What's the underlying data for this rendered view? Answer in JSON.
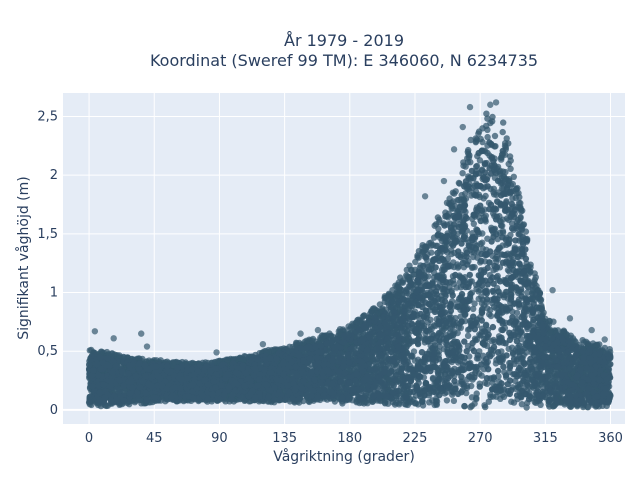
{
  "chart_data": {
    "type": "scatter",
    "title_lines": [
      "År 1979 - 2019",
      "Koordinat (Sweref 99 TM): E 346060, N 6234735"
    ],
    "xlabel": "Vågriktning (grader)",
    "ylabel": "Signifikant våghöjd (m)",
    "xlim": [
      -18,
      370
    ],
    "ylim": [
      -0.12,
      2.7
    ],
    "x_ticks": [
      0,
      45,
      90,
      135,
      180,
      225,
      270,
      315,
      360
    ],
    "x_tick_labels": [
      "0",
      "45",
      "90",
      "135",
      "180",
      "225",
      "270",
      "315",
      "360"
    ],
    "y_ticks": [
      0,
      0.5,
      1,
      1.5,
      2,
      2.5
    ],
    "y_tick_labels": [
      "0",
      "0,5",
      "1",
      "1,5",
      "2",
      "2,5"
    ],
    "grid": true,
    "marker_color": "#34586e",
    "plot_background": "#e5ecf6",
    "series": [
      {
        "envelope": {
          "x": [
            0,
            10,
            20,
            30,
            45,
            60,
            75,
            90,
            105,
            120,
            135,
            150,
            165,
            180,
            195,
            210,
            225,
            240,
            250,
            260,
            265,
            270,
            275,
            280,
            285,
            290,
            295,
            300,
            305,
            315,
            325,
            335,
            345,
            355,
            360
          ],
          "y_min": [
            0.03,
            0.03,
            0.04,
            0.05,
            0.06,
            0.07,
            0.07,
            0.07,
            0.07,
            0.07,
            0.06,
            0.06,
            0.06,
            0.05,
            0.05,
            0.04,
            0.04,
            0.03,
            0.03,
            0.02,
            0.02,
            0.02,
            0.02,
            0.02,
            0.02,
            0.02,
            0.02,
            0.02,
            0.02,
            0.02,
            0.02,
            0.02,
            0.02,
            0.03,
            0.03
          ],
          "y_max": [
            0.52,
            0.5,
            0.47,
            0.45,
            0.43,
            0.41,
            0.4,
            0.42,
            0.45,
            0.5,
            0.54,
            0.6,
            0.65,
            0.72,
            0.85,
            1.05,
            1.3,
            1.62,
            1.85,
            2.18,
            2.35,
            2.45,
            2.55,
            2.56,
            2.5,
            2.25,
            1.95,
            1.65,
            1.3,
            0.82,
            0.7,
            0.62,
            0.58,
            0.55,
            0.52
          ]
        },
        "outliers": [
          {
            "x": 4,
            "y": 0.67
          },
          {
            "x": 17,
            "y": 0.61
          },
          {
            "x": 36,
            "y": 0.65
          },
          {
            "x": 40,
            "y": 0.54
          },
          {
            "x": 88,
            "y": 0.49
          },
          {
            "x": 120,
            "y": 0.56
          },
          {
            "x": 146,
            "y": 0.65
          },
          {
            "x": 158,
            "y": 0.68
          },
          {
            "x": 232,
            "y": 1.82
          },
          {
            "x": 245,
            "y": 1.95
          },
          {
            "x": 252,
            "y": 2.22
          },
          {
            "x": 258,
            "y": 2.41
          },
          {
            "x": 263,
            "y": 2.58
          },
          {
            "x": 281,
            "y": 2.62
          },
          {
            "x": 277,
            "y": 2.6
          },
          {
            "x": 320,
            "y": 1.02
          },
          {
            "x": 332,
            "y": 0.78
          },
          {
            "x": 347,
            "y": 0.68
          },
          {
            "x": 356,
            "y": 0.6
          }
        ]
      }
    ]
  }
}
